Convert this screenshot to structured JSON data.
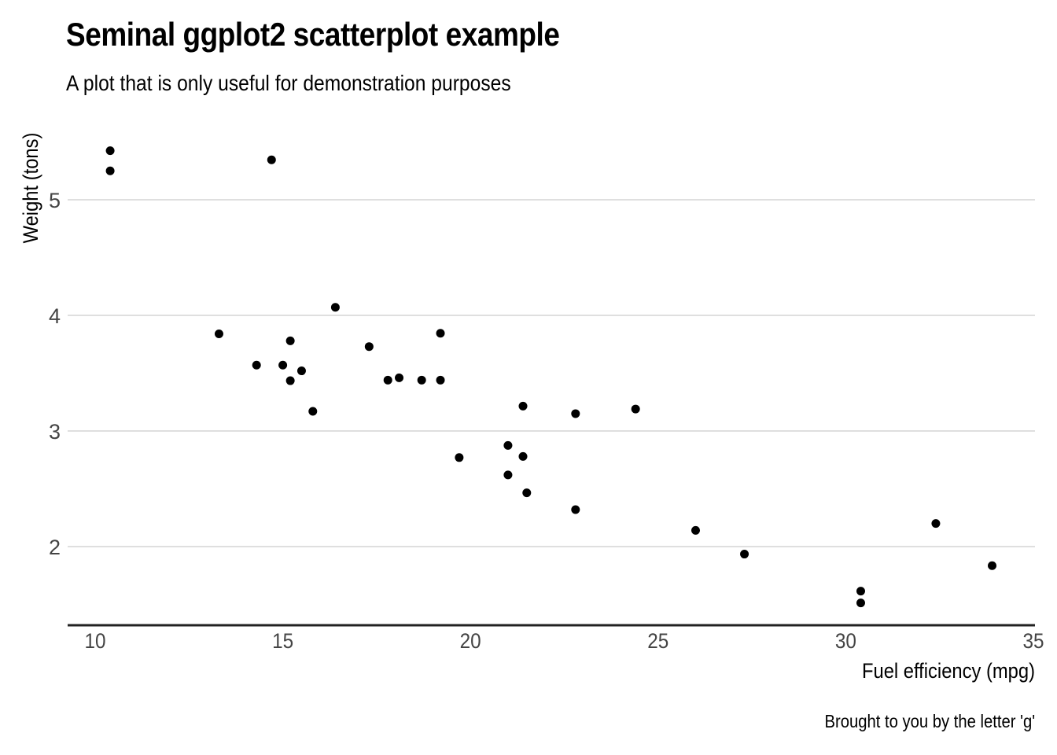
{
  "chart_data": {
    "type": "scatter",
    "title": "Seminal ggplot2 scatterplot example",
    "subtitle": "A plot that is only useful for demonstration purposes",
    "caption": "Brought to you by the letter 'g'",
    "xlabel": "Fuel efficiency (mpg)",
    "ylabel": "Weight (tons)",
    "xlim": [
      9.2,
      35
    ],
    "ylim": [
      1.31,
      5.64
    ],
    "xticks": [
      10,
      15,
      20,
      25,
      30,
      35
    ],
    "yticks": [
      2,
      3,
      4,
      5
    ],
    "grid": "horizontal-major",
    "legend": "none",
    "colors": {
      "point": "#000000",
      "grid": "#cccccc",
      "axis_line": "#222222",
      "tick_label": "#444444",
      "text": "#000000"
    },
    "points": [
      {
        "x": 21.0,
        "y": 2.62
      },
      {
        "x": 21.0,
        "y": 2.875
      },
      {
        "x": 22.8,
        "y": 2.32
      },
      {
        "x": 21.4,
        "y": 3.215
      },
      {
        "x": 18.7,
        "y": 3.44
      },
      {
        "x": 18.1,
        "y": 3.46
      },
      {
        "x": 14.3,
        "y": 3.57
      },
      {
        "x": 24.4,
        "y": 3.19
      },
      {
        "x": 22.8,
        "y": 3.15
      },
      {
        "x": 19.2,
        "y": 3.44
      },
      {
        "x": 17.8,
        "y": 3.44
      },
      {
        "x": 16.4,
        "y": 4.07
      },
      {
        "x": 17.3,
        "y": 3.73
      },
      {
        "x": 15.2,
        "y": 3.78
      },
      {
        "x": 10.4,
        "y": 5.25
      },
      {
        "x": 10.4,
        "y": 5.424
      },
      {
        "x": 14.7,
        "y": 5.345
      },
      {
        "x": 32.4,
        "y": 2.2
      },
      {
        "x": 30.4,
        "y": 1.615
      },
      {
        "x": 33.9,
        "y": 1.835
      },
      {
        "x": 21.5,
        "y": 2.465
      },
      {
        "x": 15.5,
        "y": 3.52
      },
      {
        "x": 15.2,
        "y": 3.435
      },
      {
        "x": 13.3,
        "y": 3.84
      },
      {
        "x": 19.2,
        "y": 3.845
      },
      {
        "x": 27.3,
        "y": 1.935
      },
      {
        "x": 26.0,
        "y": 2.14
      },
      {
        "x": 30.4,
        "y": 1.513
      },
      {
        "x": 15.8,
        "y": 3.17
      },
      {
        "x": 19.7,
        "y": 2.77
      },
      {
        "x": 15.0,
        "y": 3.57
      },
      {
        "x": 21.4,
        "y": 2.78
      }
    ]
  }
}
